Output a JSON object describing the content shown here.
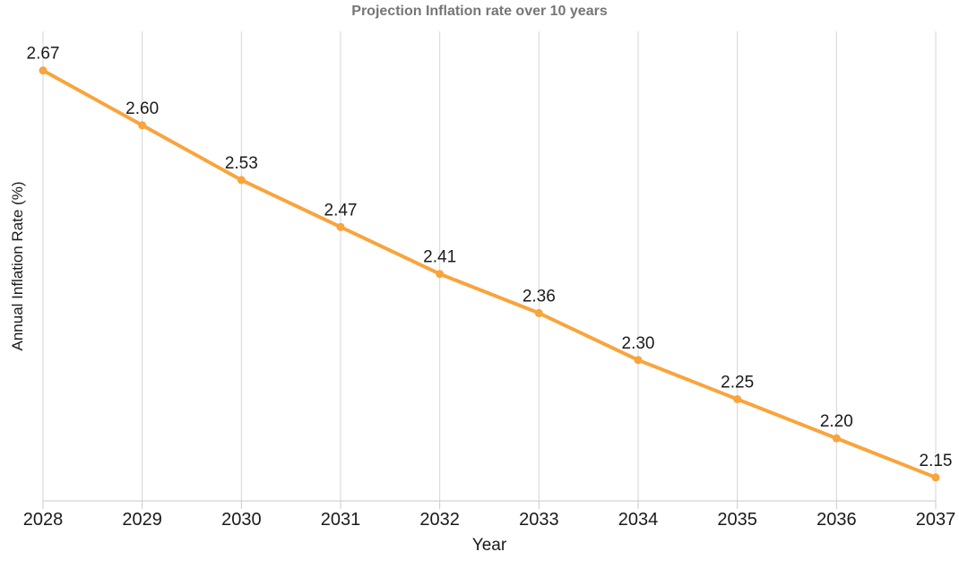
{
  "chart_data": {
    "type": "line",
    "title": "Projection Inflation rate over 10 years",
    "xlabel": "Year",
    "ylabel": "Annual Inflation Rate (%)",
    "x": [
      2028,
      2029,
      2030,
      2031,
      2032,
      2033,
      2034,
      2035,
      2036,
      2037
    ],
    "values": [
      2.67,
      2.6,
      2.53,
      2.47,
      2.41,
      2.36,
      2.3,
      2.25,
      2.2,
      2.15
    ],
    "data_labels": [
      "2.67",
      "2.60",
      "2.53",
      "2.47",
      "2.41",
      "2.36",
      "2.30",
      "2.25",
      "2.20",
      "2.15"
    ],
    "ylim": [
      2.12,
      2.72
    ],
    "grid": "vertical-only",
    "legend": "none",
    "marker": "circle",
    "colors": {
      "line": "#F9A43C",
      "grid": "#D6D6D6",
      "axis": "#C9C9C9",
      "title": "#767676",
      "text": "#1A1A1A",
      "background": "#FFFFFF"
    }
  }
}
